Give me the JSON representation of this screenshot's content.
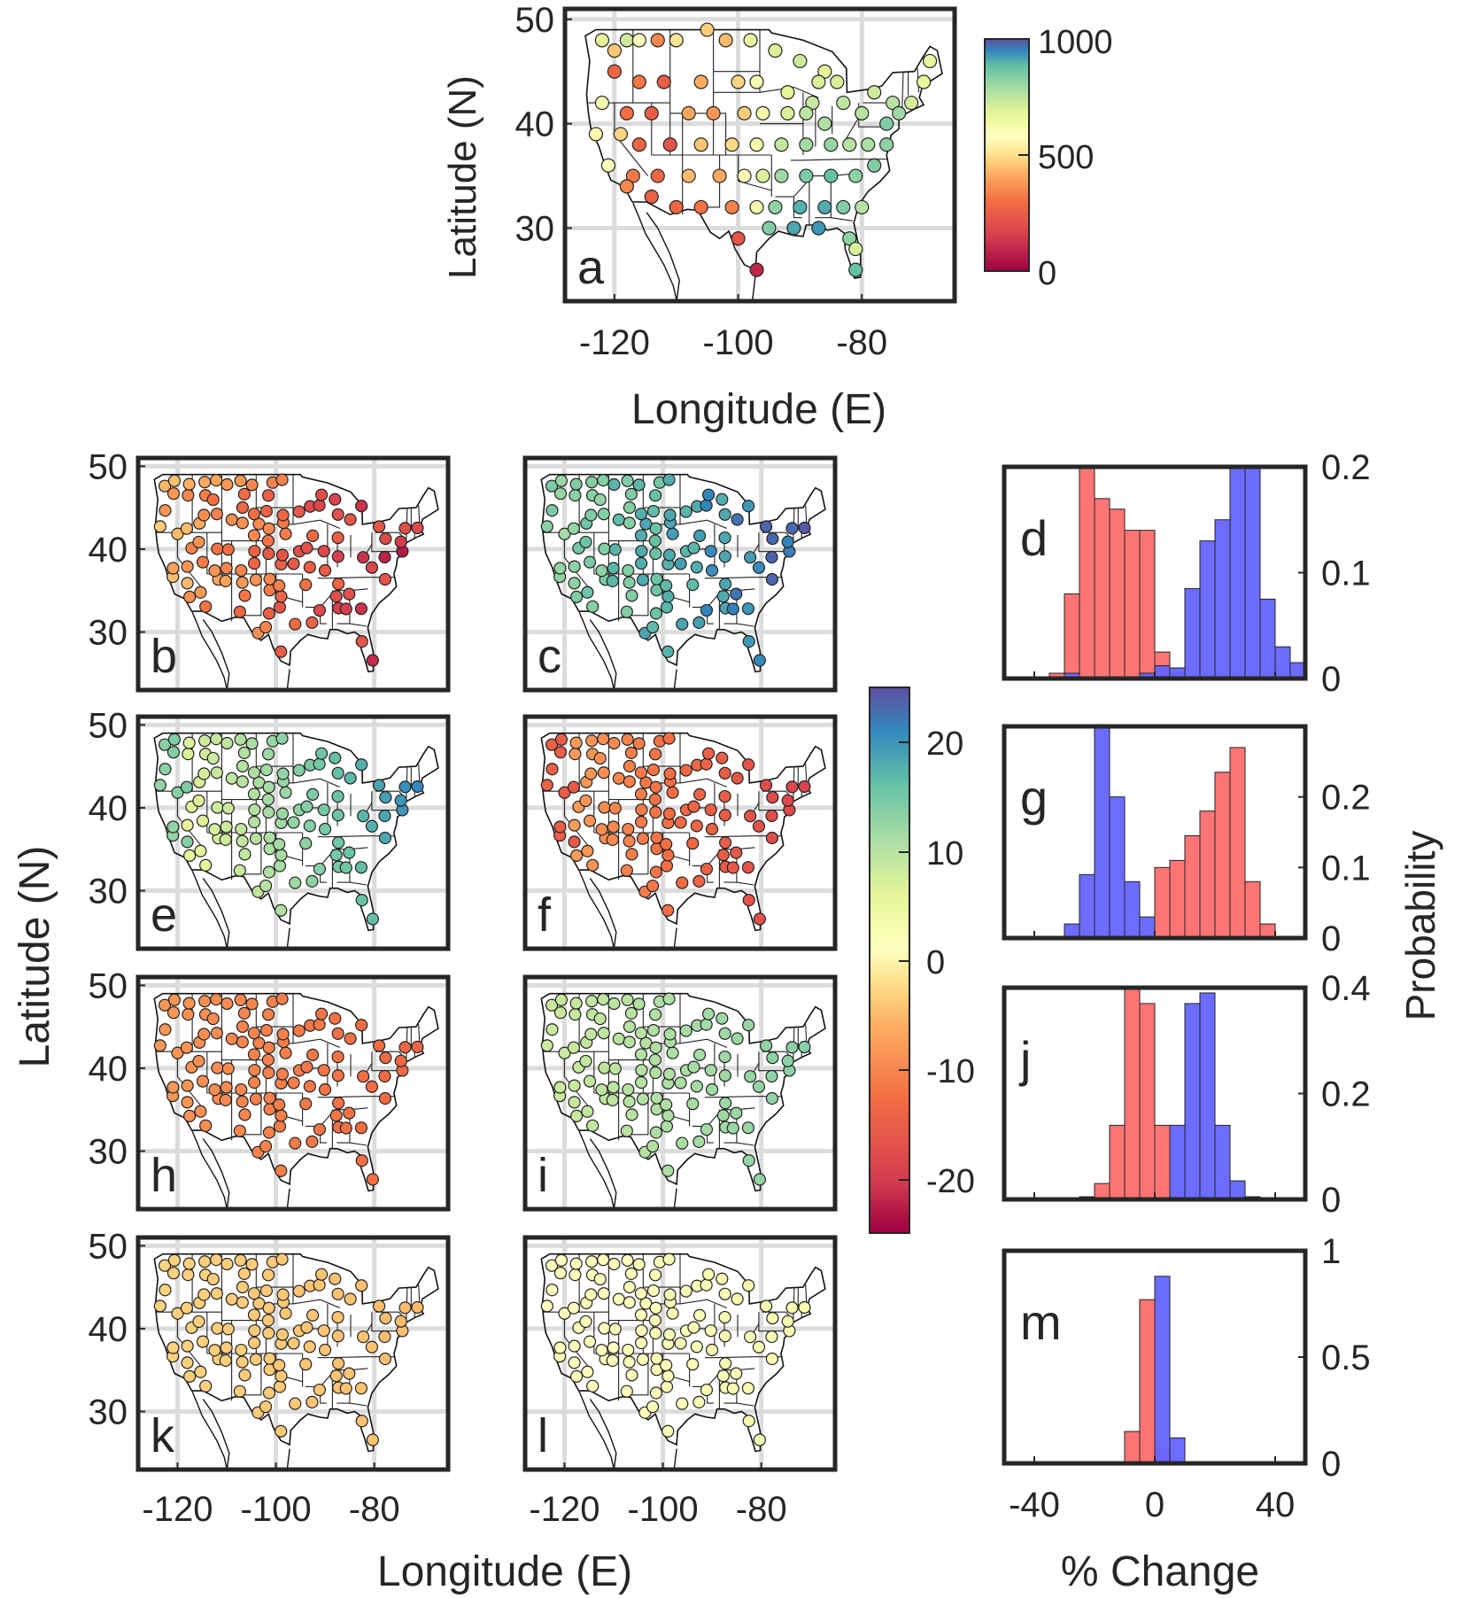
{
  "figure": {
    "panel_labels": [
      "a",
      "b",
      "c",
      "d",
      "e",
      "f",
      "g",
      "h",
      "i",
      "j",
      "k",
      "l",
      "m"
    ],
    "top_map": {
      "ylabel": "Latitude (N)",
      "xlabel": "Longitude (E)",
      "colorbar_ticks": [
        "1000",
        "500",
        "0"
      ]
    },
    "grid_maps": {
      "ylabel": "Latitude (N)",
      "xlabel": "Longitude (E)",
      "colorbar_ticks": [
        "20",
        "10",
        "0",
        "-10",
        "-20"
      ]
    },
    "histograms": {
      "ylabel": "Probability",
      "xlabel": "% Change"
    }
  },
  "colors": {
    "frame": "#262626",
    "grid": "#dcdcdc",
    "hist_red": "#ff6e6e",
    "hist_blue": "#6464ff",
    "hist_overlap": "#6a3bb8"
  },
  "chart_data": [
    {
      "type": "scatter",
      "panel": "a",
      "title": "",
      "xlabel": "Longitude (E)",
      "ylabel": "Latitude (N)",
      "xlim": [
        -128,
        -65
      ],
      "ylim": [
        23,
        51
      ],
      "xticks": [
        "-120",
        "-100",
        "-80"
      ],
      "yticks": [
        "30",
        "40",
        "50"
      ],
      "colorbar": {
        "range": [
          0,
          1000
        ],
        "ticks": [
          "1000",
          "500",
          "0"
        ]
      },
      "points": [
        [
          -122,
          48,
          620
        ],
        [
          -120,
          47,
          420
        ],
        [
          -118,
          48,
          660
        ],
        [
          -116,
          48,
          520
        ],
        [
          -113,
          48,
          300
        ],
        [
          -110,
          48,
          470
        ],
        [
          -105,
          49,
          430
        ],
        [
          -102,
          48,
          400
        ],
        [
          -98,
          48,
          600
        ],
        [
          -94,
          47,
          640
        ],
        [
          -90,
          46,
          660
        ],
        [
          -86,
          45,
          620
        ],
        [
          -84,
          44,
          640
        ],
        [
          -120,
          45,
          230
        ],
        [
          -116,
          44,
          270
        ],
        [
          -112,
          44,
          200
        ],
        [
          -106,
          44,
          380
        ],
        [
          -100,
          44,
          440
        ],
        [
          -97,
          44,
          560
        ],
        [
          -92,
          43,
          620
        ],
        [
          -88,
          42,
          670
        ],
        [
          -122,
          42,
          560
        ],
        [
          -118,
          41,
          250
        ],
        [
          -114,
          41,
          200
        ],
        [
          -108,
          41,
          360
        ],
        [
          -104,
          41,
          330
        ],
        [
          -99,
          41,
          430
        ],
        [
          -96,
          41,
          560
        ],
        [
          -92,
          41,
          640
        ],
        [
          -89,
          41,
          690
        ],
        [
          -86,
          40,
          710
        ],
        [
          -123,
          39,
          500
        ],
        [
          -119,
          39,
          440
        ],
        [
          -116,
          38,
          220
        ],
        [
          -111,
          38,
          170
        ],
        [
          -106,
          38,
          420
        ],
        [
          -101,
          38,
          450
        ],
        [
          -97,
          38,
          570
        ],
        [
          -93,
          38,
          680
        ],
        [
          -89,
          38,
          730
        ],
        [
          -85,
          38,
          750
        ],
        [
          -82,
          38,
          700
        ],
        [
          -79,
          38,
          720
        ],
        [
          -76,
          38,
          760
        ],
        [
          -121,
          36,
          530
        ],
        [
          -117,
          35,
          270
        ],
        [
          -113,
          35,
          230
        ],
        [
          -108,
          35,
          400
        ],
        [
          -103,
          35,
          370
        ],
        [
          -99,
          35,
          510
        ],
        [
          -96,
          35,
          640
        ],
        [
          -93,
          35,
          740
        ],
        [
          -89,
          35,
          790
        ],
        [
          -85,
          35,
          820
        ],
        [
          -81,
          35,
          760
        ],
        [
          -78,
          36,
          780
        ],
        [
          -118,
          34,
          300
        ],
        [
          -114,
          33,
          210
        ],
        [
          -110,
          32,
          220
        ],
        [
          -106,
          32,
          260
        ],
        [
          -101,
          32,
          290
        ],
        [
          -97,
          32,
          560
        ],
        [
          -94,
          32,
          760
        ],
        [
          -90,
          32,
          850
        ],
        [
          -86,
          32,
          860
        ],
        [
          -83,
          32,
          780
        ],
        [
          -80,
          32,
          700
        ],
        [
          -100,
          29,
          170
        ],
        [
          -95,
          30,
          780
        ],
        [
          -91,
          30,
          870
        ],
        [
          -87,
          30,
          900
        ],
        [
          -82,
          29,
          760
        ],
        [
          -97,
          26,
          60
        ],
        [
          -81,
          26,
          820
        ],
        [
          -81,
          28,
          640
        ],
        [
          -75,
          42,
          700
        ],
        [
          -72,
          42,
          650
        ],
        [
          -70,
          44,
          610
        ],
        [
          -69,
          46,
          600
        ],
        [
          -76,
          40,
          780
        ],
        [
          -74,
          41,
          740
        ],
        [
          -80,
          41,
          700
        ],
        [
          -83,
          42,
          690
        ],
        [
          -87,
          44,
          640
        ],
        [
          -78,
          43,
          660
        ]
      ]
    },
    {
      "type": "scatter",
      "panel": "b",
      "xlim": [
        -128,
        -65
      ],
      "ylim": [
        23,
        51
      ],
      "yticks": [
        "30",
        "40",
        "50"
      ],
      "colorbar": {
        "range": [
          -25,
          25
        ],
        "ticks": [
          "20",
          "10",
          "0",
          "-10",
          "-20"
        ]
      },
      "note": "per-station % change; mostly strong negative (east) to weak negative (west)"
    },
    {
      "type": "bar",
      "panel": "d",
      "xlabel": "% Change",
      "ylabel": "Probability",
      "xlim": [
        -50,
        50
      ],
      "ylim": [
        0,
        0.2
      ],
      "yticks": [
        "0",
        "0.1",
        "0.2"
      ],
      "bin_edges": [
        -45,
        -40,
        -35,
        -30,
        -25,
        -20,
        -15,
        -10,
        -5,
        0,
        5,
        10,
        15,
        20,
        25,
        30,
        35,
        40,
        45,
        50
      ],
      "series": [
        {
          "color": "red",
          "values": [
            0,
            0,
            0.005,
            0.08,
            0.2,
            0.17,
            0.16,
            0.14,
            0.14,
            0.025,
            0.005,
            0,
            0,
            0,
            0,
            0,
            0,
            0,
            0
          ]
        },
        {
          "color": "blue",
          "values": [
            0,
            0,
            0,
            0.005,
            0,
            0,
            0,
            0,
            0.005,
            0.012,
            0.01,
            0.085,
            0.13,
            0.15,
            0.2,
            0.2,
            0.075,
            0.03,
            0.015
          ]
        }
      ]
    },
    {
      "type": "bar",
      "panel": "g",
      "xlabel": "% Change",
      "ylabel": "Probability",
      "xlim": [
        -50,
        50
      ],
      "ylim": [
        0,
        0.3
      ],
      "yticks": [
        "0",
        "0.1",
        "0.2"
      ],
      "bin_edges": [
        -45,
        -40,
        -35,
        -30,
        -25,
        -20,
        -15,
        -10,
        -5,
        0,
        5,
        10,
        15,
        20,
        25,
        30,
        35,
        40,
        45,
        50
      ],
      "series": [
        {
          "color": "blue",
          "values": [
            0,
            0,
            0,
            0.02,
            0.09,
            0.3,
            0.2,
            0.08,
            0.03,
            0,
            0,
            0,
            0,
            0,
            0,
            0,
            0,
            0,
            0
          ]
        },
        {
          "color": "red",
          "values": [
            0,
            0,
            0,
            0,
            0,
            0,
            0,
            0,
            0,
            0.1,
            0.11,
            0.145,
            0.18,
            0.235,
            0.27,
            0.08,
            0.02,
            0,
            0
          ]
        }
      ]
    },
    {
      "type": "bar",
      "panel": "j",
      "xlabel": "% Change",
      "ylabel": "Probability",
      "xlim": [
        -50,
        50
      ],
      "ylim": [
        0,
        0.4
      ],
      "yticks": [
        "0",
        "0.2",
        "0.4"
      ],
      "bin_edges": [
        -45,
        -40,
        -35,
        -30,
        -25,
        -20,
        -15,
        -10,
        -5,
        0,
        5,
        10,
        15,
        20,
        25,
        30,
        35,
        40,
        45,
        50
      ],
      "series": [
        {
          "color": "red",
          "values": [
            0,
            0,
            0,
            0,
            0.005,
            0.03,
            0.14,
            0.4,
            0.37,
            0.14,
            0,
            0,
            0,
            0,
            0,
            0,
            0,
            0,
            0
          ]
        },
        {
          "color": "blue",
          "values": [
            0,
            0,
            0,
            0,
            0,
            0,
            0,
            0,
            0,
            0,
            0.14,
            0.37,
            0.39,
            0.14,
            0.035,
            0.005,
            0,
            0,
            0
          ]
        }
      ]
    },
    {
      "type": "bar",
      "panel": "m",
      "xlabel": "% Change",
      "ylabel": "Probability",
      "xlim": [
        -50,
        50
      ],
      "ylim": [
        0,
        1
      ],
      "yticks": [
        "0",
        "0.5",
        "1"
      ],
      "xticks": [
        "-40",
        "0",
        "40"
      ],
      "bin_edges": [
        -45,
        -40,
        -35,
        -30,
        -25,
        -20,
        -15,
        -10,
        -5,
        0,
        5,
        10,
        15,
        20,
        25,
        30,
        35,
        40,
        45,
        50
      ],
      "series": [
        {
          "color": "red",
          "values": [
            0,
            0,
            0,
            0,
            0,
            0,
            0,
            0.15,
            0.77,
            0.07,
            0,
            0,
            0,
            0,
            0,
            0,
            0,
            0,
            0
          ]
        },
        {
          "color": "blue",
          "values": [
            0,
            0,
            0,
            0,
            0,
            0,
            0,
            0,
            0,
            0.88,
            0.12,
            0,
            0,
            0,
            0,
            0,
            0,
            0,
            0
          ]
        }
      ]
    }
  ]
}
